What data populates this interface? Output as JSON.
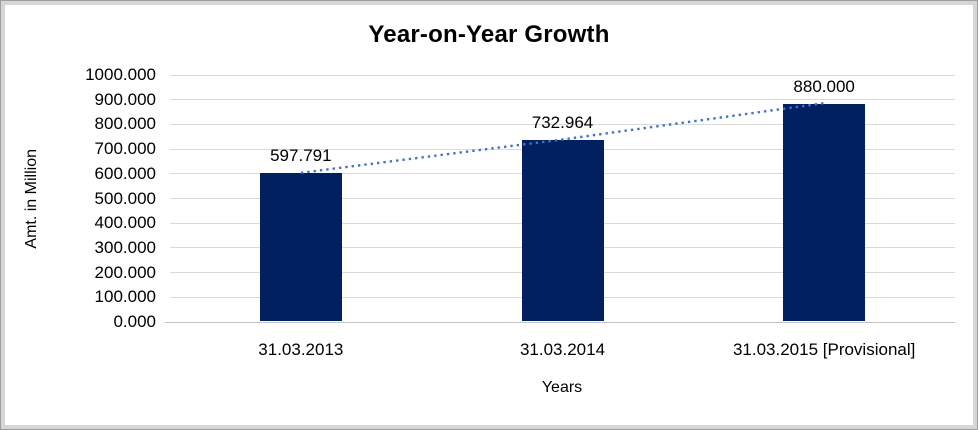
{
  "chart_data": {
    "type": "bar",
    "title": "Year-on-Year Growth",
    "xlabel": "Years",
    "ylabel": "Amt. in Million",
    "categories": [
      "31.03.2013",
      "31.03.2014",
      "31.03.2015 [Provisional]"
    ],
    "values": [
      597.791,
      732.964,
      880.0
    ],
    "data_labels": [
      "597.791",
      "732.964",
      "880.000"
    ],
    "ylim": [
      0,
      1000
    ],
    "ytick_step": 100,
    "ytick_labels": [
      "0.000",
      "100.000",
      "200.000",
      "300.000",
      "400.000",
      "500.000",
      "600.000",
      "700.000",
      "800.000",
      "900.000",
      "1000.000"
    ],
    "grid": true,
    "legend": "none",
    "trendline": {
      "style": "dotted",
      "span": "bar-top-centers"
    },
    "colors": {
      "bar": "#002060",
      "trendline": "#4472c4",
      "gridline": "#d9d9d9",
      "axis_line": "#c3c3c3",
      "text": "#000000",
      "frame_band": "#d6d6d6",
      "frame_edge": "#9e9e9e",
      "background": "#ffffff"
    }
  }
}
